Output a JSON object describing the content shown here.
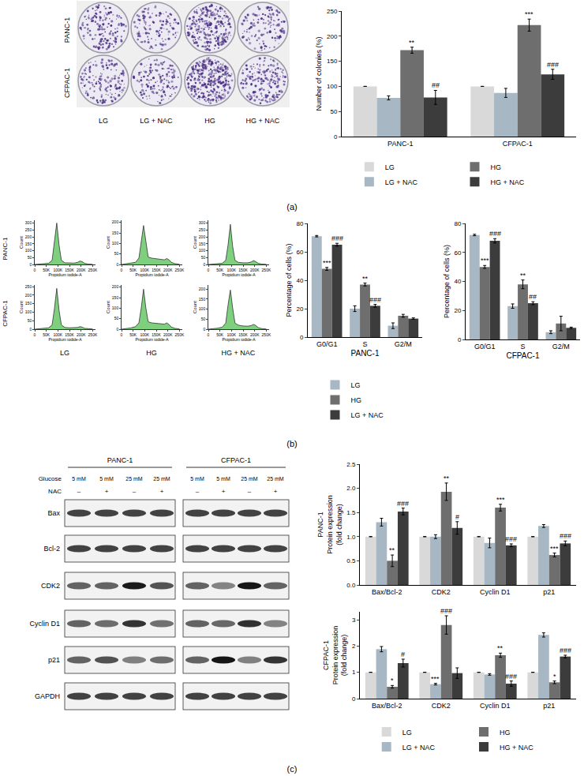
{
  "figure": {
    "panel_labels": [
      "(a)",
      "(b)",
      "(c)"
    ]
  },
  "colony_images": {
    "rows": [
      "PANC-1",
      "CFPAC-1"
    ],
    "columns": [
      "LG",
      "LG + NAC",
      "HG",
      "HG + NAC"
    ]
  },
  "flow_cytometry": {
    "rows": [
      "PANC-1",
      "CFPAC-1"
    ],
    "columns": [
      "LG",
      "HG",
      "HG + NAC"
    ]
  },
  "western_blot": {
    "cell_lines": [
      "PANC-1",
      "CFPAC-1"
    ],
    "glucose_label": "Glucose",
    "nac_label": "NAC",
    "glucose": [
      "5 mM",
      "5 mM",
      "25 mM",
      "25 mM"
    ],
    "nac": [
      "–",
      "+",
      "–",
      "+"
    ],
    "proteins": [
      "Bax",
      "Bcl-2",
      "CDK2",
      "Cyclin D1",
      "p21",
      "GAPDH"
    ]
  },
  "chart_data": [
    {
      "type": "bar",
      "y_label": "Number of colonies (%)",
      "categories": [
        "PANC-1",
        "CFPAC-1"
      ],
      "series": [
        {
          "name": "LG",
          "color": "#d9d9d9",
          "values": [
            100,
            100
          ],
          "errors": [
            0,
            0
          ]
        },
        {
          "name": "LG + NAC",
          "color": "#a7b8c4",
          "values": [
            77,
            87
          ],
          "errors": [
            4,
            9
          ]
        },
        {
          "name": "HG",
          "color": "#6e6e6e",
          "values": [
            172,
            222
          ],
          "errors": [
            6,
            12
          ]
        },
        {
          "name": "HG + NAC",
          "color": "#3c3c3c",
          "values": [
            78,
            124
          ],
          "errors": [
            14,
            10
          ]
        }
      ],
      "ylim": [
        0,
        250
      ],
      "yticks": [
        0,
        50,
        100,
        150,
        200,
        250
      ],
      "grid": false,
      "legend": "bottom",
      "annotations": [
        {
          "category": "PANC-1",
          "series": "HG",
          "text": "**"
        },
        {
          "category": "PANC-1",
          "series": "HG + NAC",
          "text": "##"
        },
        {
          "category": "CFPAC-1",
          "series": "HG",
          "text": "***"
        },
        {
          "category": "CFPAC-1",
          "series": "HG + NAC",
          "text": "###"
        }
      ]
    },
    {
      "type": "bar",
      "x_label": "PANC-1",
      "y_label": "Percentage of cells (%)",
      "categories": [
        "G0/G1",
        "S",
        "G2/M"
      ],
      "series": [
        {
          "name": "LG",
          "color": "#a7b8c4",
          "values": [
            71,
            20,
            8
          ],
          "errors": [
            0.5,
            2,
            2
          ]
        },
        {
          "name": "HG",
          "color": "#6e6e6e",
          "values": [
            48,
            37,
            15
          ],
          "errors": [
            1,
            1,
            1
          ]
        },
        {
          "name": "LG + NAC",
          "color": "#3c3c3c",
          "values": [
            65,
            22,
            13
          ],
          "errors": [
            1,
            1,
            0.5
          ]
        }
      ],
      "ylim": [
        0,
        80
      ],
      "yticks": [
        0,
        20,
        40,
        60,
        80
      ],
      "grid": false,
      "legend": "bottom",
      "annotations": [
        {
          "category": "G0/G1",
          "series": "HG",
          "text": "***"
        },
        {
          "category": "G0/G1",
          "series": "LG + NAC",
          "text": "###"
        },
        {
          "category": "S",
          "series": "HG",
          "text": "**"
        },
        {
          "category": "S",
          "series": "LG + NAC",
          "text": "###"
        }
      ]
    },
    {
      "type": "bar",
      "x_label": "CFPAC-1",
      "y_label": "Percentage of cells (%)",
      "categories": [
        "G0/G1",
        "S",
        "G2/M"
      ],
      "series": [
        {
          "name": "LG",
          "color": "#a7b8c4",
          "values": [
            72,
            23,
            5
          ],
          "errors": [
            0.5,
            1.5,
            1
          ]
        },
        {
          "name": "HG",
          "color": "#6e6e6e",
          "values": [
            50,
            38,
            11
          ],
          "errors": [
            1,
            3,
            5
          ]
        },
        {
          "name": "LG + NAC",
          "color": "#3c3c3c",
          "values": [
            68,
            25,
            8
          ],
          "errors": [
            1.5,
            1,
            0.5
          ]
        }
      ],
      "ylim": [
        0,
        80
      ],
      "yticks": [
        0,
        20,
        40,
        60,
        80
      ],
      "grid": false,
      "annotations": [
        {
          "category": "G0/G1",
          "series": "HG",
          "text": "***"
        },
        {
          "category": "G0/G1",
          "series": "LG + NAC",
          "text": "###"
        },
        {
          "category": "S",
          "series": "HG",
          "text": "**"
        },
        {
          "category": "S",
          "series": "LG + NAC",
          "text": "##"
        }
      ]
    },
    {
      "type": "bar",
      "y_label": [
        "PANC-1",
        "Protein expression",
        "(fold change)"
      ],
      "categories": [
        "Bax/Bcl-2",
        "CDK2",
        "Cyclin D1",
        "p21"
      ],
      "series": [
        {
          "name": "LG",
          "color": "#d9d9d9",
          "values": [
            1,
            1,
            1,
            1
          ],
          "errors": [
            0,
            0,
            0,
            0
          ]
        },
        {
          "name": "LG + NAC",
          "color": "#a7b8c4",
          "values": [
            1.3,
            1.0,
            0.87,
            1.22
          ],
          "errors": [
            0.08,
            0.04,
            0.1,
            0.03
          ]
        },
        {
          "name": "HG",
          "color": "#6e6e6e",
          "values": [
            0.5,
            1.93,
            1.6,
            0.62
          ],
          "errors": [
            0.12,
            0.18,
            0.07,
            0.04
          ]
        },
        {
          "name": "HG + NAC",
          "color": "#3c3c3c",
          "values": [
            1.52,
            1.18,
            0.82,
            0.86
          ],
          "errors": [
            0.07,
            0.13,
            0.03,
            0.05
          ]
        }
      ],
      "ylim": [
        0,
        2.5
      ],
      "yticks": [
        {
          "value": 0,
          "label": "0.0"
        },
        0.5,
        {
          "value": 1,
          "label": "1.0"
        },
        1.5,
        {
          "value": 2,
          "label": "2.0"
        },
        2.5
      ],
      "grid": false,
      "annotations": [
        {
          "category": "Bax/Bcl-2",
          "series": "HG",
          "text": "**"
        },
        {
          "category": "Bax/Bcl-2",
          "series": "HG + NAC",
          "text": "###"
        },
        {
          "category": "CDK2",
          "series": "HG",
          "text": "**"
        },
        {
          "category": "CDK2",
          "series": "HG + NAC",
          "text": "#"
        },
        {
          "category": "Cyclin D1",
          "series": "HG",
          "text": "***"
        },
        {
          "category": "Cyclin D1",
          "series": "HG + NAC",
          "text": "###"
        },
        {
          "category": "p21",
          "series": "HG",
          "text": "***"
        },
        {
          "category": "p21",
          "series": "HG + NAC",
          "text": "###"
        }
      ]
    },
    {
      "type": "bar",
      "y_label": [
        "CFPAC-1",
        "Protein expression",
        "(fold change)"
      ],
      "categories": [
        "Bax/Bcl-2",
        "CDK2",
        "Cyclin D1",
        "p21"
      ],
      "series": [
        {
          "name": "LG",
          "color": "#d9d9d9",
          "values": [
            1,
            1,
            1,
            1
          ],
          "errors": [
            0,
            0,
            0,
            0
          ]
        },
        {
          "name": "LG + NAC",
          "color": "#a7b8c4",
          "values": [
            1.88,
            0.55,
            0.92,
            2.42
          ],
          "errors": [
            0.1,
            0.03,
            0.03,
            0.08
          ]
        },
        {
          "name": "HG",
          "color": "#6e6e6e",
          "values": [
            0.45,
            2.8,
            1.65,
            0.62
          ],
          "errors": [
            0.05,
            0.35,
            0.08,
            0.05
          ]
        },
        {
          "name": "HG + NAC",
          "color": "#3c3c3c",
          "values": [
            1.35,
            0.97,
            0.57,
            1.6
          ],
          "errors": [
            0.15,
            0.2,
            0.1,
            0.05
          ]
        }
      ],
      "ylim": [
        0,
        3.3
      ],
      "yticks": [
        0,
        1,
        2,
        3
      ],
      "grid": false,
      "legend": "bottom",
      "annotations": [
        {
          "category": "Bax/Bcl-2",
          "series": "HG",
          "text": "*"
        },
        {
          "category": "Bax/Bcl-2",
          "series": "HG + NAC",
          "text": "#"
        },
        {
          "category": "CDK2",
          "series": "LG + NAC",
          "text": "***"
        },
        {
          "category": "CDK2",
          "series": "HG",
          "text": "###"
        },
        {
          "category": "Cyclin D1",
          "series": "HG",
          "text": "**"
        },
        {
          "category": "Cyclin D1",
          "series": "HG + NAC",
          "text": "###"
        },
        {
          "category": "p21",
          "series": "HG",
          "text": "*"
        },
        {
          "category": "p21",
          "series": "HG + NAC",
          "text": "###"
        }
      ]
    },
    {
      "type": "area",
      "x_label": "Propidium iodide-A",
      "y_label": "Count",
      "color": "#7ed07e",
      "grid": false,
      "x": [
        0,
        20000,
        40000,
        60000,
        75000,
        85000,
        95000,
        105000,
        115000,
        130000,
        150000,
        170000,
        185000,
        195000,
        205000,
        215000,
        230000,
        250000
      ],
      "values": [
        0,
        2,
        4,
        8,
        30,
        150,
        300,
        140,
        30,
        12,
        10,
        10,
        15,
        25,
        20,
        8,
        3,
        1
      ],
      "xlim": [
        0,
        262144
      ],
      "xticks": [
        0,
        {
          "value": 50000,
          "label": "50K"
        },
        {
          "value": 100000,
          "label": "100K"
        },
        {
          "value": 150000,
          "label": "150K"
        },
        {
          "value": 200000,
          "label": "200K"
        },
        {
          "value": 250000,
          "label": "250K"
        }
      ],
      "ylim": [
        0,
        320
      ],
      "yticks": [
        0,
        50,
        100,
        150,
        200,
        250,
        300
      ]
    },
    {
      "type": "area",
      "x_label": "Propidium iodide-A",
      "y_label": "Count",
      "color": "#7ed07e",
      "grid": false,
      "x": [
        0,
        20000,
        40000,
        60000,
        75000,
        85000,
        95000,
        105000,
        115000,
        130000,
        150000,
        170000,
        185000,
        195000,
        205000,
        215000,
        230000,
        250000
      ],
      "values": [
        0,
        3,
        5,
        10,
        30,
        100,
        185,
        110,
        35,
        30,
        28,
        25,
        22,
        28,
        22,
        10,
        4,
        1
      ],
      "xlim": [
        0,
        262144
      ],
      "xticks": [
        0,
        {
          "value": 50000,
          "label": "50K"
        },
        {
          "value": 100000,
          "label": "100K"
        },
        {
          "value": 150000,
          "label": "150K"
        },
        {
          "value": 200000,
          "label": "200K"
        },
        {
          "value": 250000,
          "label": "250K"
        }
      ],
      "ylim": [
        0,
        210
      ],
      "yticks": [
        0,
        50,
        100,
        150,
        200
      ]
    },
    {
      "type": "area",
      "x_label": "Propidium iodide-A",
      "y_label": "Count",
      "color": "#7ed07e",
      "grid": false,
      "x": [
        0,
        20000,
        40000,
        60000,
        75000,
        85000,
        95000,
        105000,
        115000,
        130000,
        150000,
        170000,
        185000,
        195000,
        205000,
        215000,
        230000,
        250000
      ],
      "values": [
        0,
        2,
        4,
        8,
        30,
        140,
        290,
        130,
        30,
        15,
        12,
        12,
        18,
        28,
        20,
        8,
        3,
        1
      ],
      "xlim": [
        0,
        262144
      ],
      "xticks": [
        0,
        {
          "value": 50000,
          "label": "50K"
        },
        {
          "value": 100000,
          "label": "100K"
        },
        {
          "value": 150000,
          "label": "150K"
        },
        {
          "value": 200000,
          "label": "200K"
        },
        {
          "value": 250000,
          "label": "250K"
        }
      ],
      "ylim": [
        0,
        320
      ],
      "yticks": [
        0,
        50,
        100,
        150,
        200,
        250,
        300
      ]
    },
    {
      "type": "area",
      "x_label": "Propidium iodide-A",
      "y_label": "Count",
      "color": "#7ed07e",
      "grid": false,
      "x": [
        0,
        20000,
        40000,
        60000,
        75000,
        85000,
        95000,
        105000,
        115000,
        130000,
        150000,
        170000,
        185000,
        195000,
        205000,
        215000,
        230000,
        250000
      ],
      "values": [
        0,
        2,
        4,
        8,
        25,
        120,
        240,
        110,
        25,
        10,
        8,
        8,
        10,
        15,
        12,
        5,
        2,
        1
      ],
      "xlim": [
        0,
        262144
      ],
      "xticks": [
        0,
        {
          "value": 50000,
          "label": "50K"
        },
        {
          "value": 100000,
          "label": "100K"
        },
        {
          "value": 150000,
          "label": "150K"
        },
        {
          "value": 200000,
          "label": "200K"
        },
        {
          "value": 250000,
          "label": "250K"
        }
      ],
      "ylim": [
        0,
        260
      ],
      "yticks": [
        0,
        50,
        100,
        150,
        200,
        250
      ]
    },
    {
      "type": "area",
      "x_label": "Propidium iodide-A",
      "y_label": "Count",
      "color": "#7ed07e",
      "grid": false,
      "x": [
        0,
        20000,
        40000,
        60000,
        75000,
        85000,
        95000,
        105000,
        115000,
        130000,
        150000,
        170000,
        185000,
        195000,
        205000,
        215000,
        230000,
        250000
      ],
      "values": [
        0,
        3,
        6,
        12,
        30,
        100,
        190,
        100,
        35,
        30,
        28,
        26,
        24,
        30,
        22,
        10,
        4,
        1
      ],
      "xlim": [
        0,
        262144
      ],
      "xticks": [
        0,
        {
          "value": 50000,
          "label": "50K"
        },
        {
          "value": 100000,
          "label": "100K"
        },
        {
          "value": 150000,
          "label": "150K"
        },
        {
          "value": 200000,
          "label": "200K"
        },
        {
          "value": 250000,
          "label": "250K"
        }
      ],
      "ylim": [
        0,
        210
      ],
      "yticks": [
        0,
        50,
        100,
        150,
        200
      ]
    },
    {
      "type": "area",
      "x_label": "Propidium iodide-A",
      "y_label": "Count",
      "color": "#7ed07e",
      "grid": false,
      "x": [
        0,
        20000,
        40000,
        60000,
        75000,
        85000,
        95000,
        105000,
        115000,
        130000,
        150000,
        170000,
        185000,
        195000,
        205000,
        215000,
        230000,
        250000
      ],
      "values": [
        0,
        2,
        5,
        10,
        30,
        120,
        195,
        105,
        30,
        20,
        16,
        15,
        18,
        24,
        18,
        8,
        3,
        1
      ],
      "xlim": [
        0,
        262144
      ],
      "xticks": [
        0,
        {
          "value": 50000,
          "label": "50K"
        },
        {
          "value": 100000,
          "label": "100K"
        },
        {
          "value": 150000,
          "label": "150K"
        },
        {
          "value": 200000,
          "label": "200K"
        },
        {
          "value": 250000,
          "label": "250K"
        }
      ],
      "ylim": [
        0,
        220
      ],
      "yticks": [
        0,
        50,
        100,
        150,
        200
      ]
    }
  ]
}
